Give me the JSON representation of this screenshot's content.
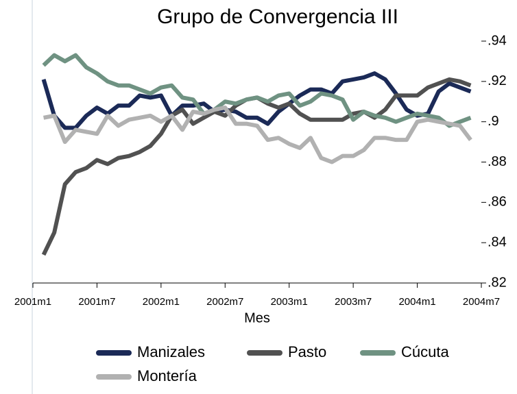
{
  "chart_data": {
    "type": "line",
    "title": "Grupo de Convergencia III",
    "x_label": "Mes",
    "legend": "bottom",
    "x": [
      "2001m2",
      "2001m3",
      "2001m4",
      "2001m5",
      "2001m6",
      "2001m7",
      "2001m8",
      "2001m9",
      "2001m10",
      "2001m11",
      "2001m12",
      "2002m1",
      "2002m2",
      "2002m3",
      "2002m4",
      "2002m5",
      "2002m6",
      "2002m7",
      "2002m8",
      "2002m9",
      "2002m10",
      "2002m11",
      "2002m12",
      "2003m1",
      "2003m2",
      "2003m3",
      "2003m4",
      "2003m5",
      "2003m6",
      "2003m7",
      "2003m8",
      "2003m9",
      "2003m10",
      "2003m11",
      "2003m12",
      "2004m1",
      "2004m2",
      "2004m3",
      "2004m4",
      "2004m5",
      "2004m6"
    ],
    "xlim": [
      "2001m1",
      "2004m7"
    ],
    "xticks": [
      "2001m1",
      "2001m7",
      "2002m1",
      "2002m7",
      "2003m1",
      "2003m7",
      "2004m1",
      "2004m7"
    ],
    "ylim": [
      0.82,
      0.94
    ],
    "yticks": [
      {
        "value": 0.82,
        "label": ".82"
      },
      {
        "value": 0.84,
        "label": ".84"
      },
      {
        "value": 0.86,
        "label": ".86"
      },
      {
        "value": 0.88,
        "label": ".88"
      },
      {
        "value": 0.9,
        "label": ".9"
      },
      {
        "value": 0.92,
        "label": ".92"
      },
      {
        "value": 0.94,
        "label": ".94"
      }
    ],
    "series": [
      {
        "name": "Manizales",
        "color": "#1b2a57",
        "values": [
          0.921,
          0.903,
          0.897,
          0.897,
          0.903,
          0.907,
          0.904,
          0.908,
          0.908,
          0.913,
          0.912,
          0.913,
          0.903,
          0.908,
          0.908,
          0.909,
          0.905,
          0.906,
          0.905,
          0.902,
          0.902,
          0.899,
          0.905,
          0.909,
          0.913,
          0.916,
          0.916,
          0.914,
          0.92,
          0.921,
          0.922,
          0.924,
          0.921,
          0.914,
          0.906,
          0.903,
          0.904,
          0.915,
          0.919,
          0.917,
          0.915
        ]
      },
      {
        "name": "Pasto",
        "color": "#515151",
        "values": [
          0.834,
          0.845,
          0.869,
          0.875,
          0.877,
          0.881,
          0.879,
          0.882,
          0.883,
          0.885,
          0.888,
          0.894,
          0.903,
          0.906,
          0.899,
          0.902,
          0.905,
          0.903,
          0.908,
          0.911,
          0.912,
          0.909,
          0.907,
          0.909,
          0.904,
          0.901,
          0.901,
          0.901,
          0.901,
          0.904,
          0.905,
          0.902,
          0.906,
          0.913,
          0.913,
          0.913,
          0.917,
          0.919,
          0.921,
          0.92,
          0.918
        ]
      },
      {
        "name": "Cúcuta",
        "color": "#6f9282",
        "values": [
          0.928,
          0.933,
          0.93,
          0.933,
          0.927,
          0.924,
          0.92,
          0.918,
          0.918,
          0.916,
          0.914,
          0.917,
          0.918,
          0.912,
          0.911,
          0.904,
          0.906,
          0.91,
          0.909,
          0.911,
          0.912,
          0.91,
          0.913,
          0.914,
          0.908,
          0.91,
          0.914,
          0.913,
          0.911,
          0.901,
          0.905,
          0.903,
          0.902,
          0.9,
          0.902,
          0.904,
          0.903,
          0.902,
          0.898,
          0.9,
          0.902
        ]
      },
      {
        "name": "Montería",
        "color": "#b1b1b1",
        "values": [
          0.902,
          0.903,
          0.89,
          0.896,
          0.895,
          0.894,
          0.903,
          0.898,
          0.901,
          0.902,
          0.903,
          0.9,
          0.903,
          0.896,
          0.905,
          0.904,
          0.906,
          0.907,
          0.899,
          0.899,
          0.898,
          0.891,
          0.892,
          0.889,
          0.887,
          0.892,
          0.882,
          0.88,
          0.883,
          0.883,
          0.886,
          0.892,
          0.892,
          0.891,
          0.891,
          0.9,
          0.901,
          0.9,
          0.899,
          0.898,
          0.891
        ]
      }
    ]
  }
}
